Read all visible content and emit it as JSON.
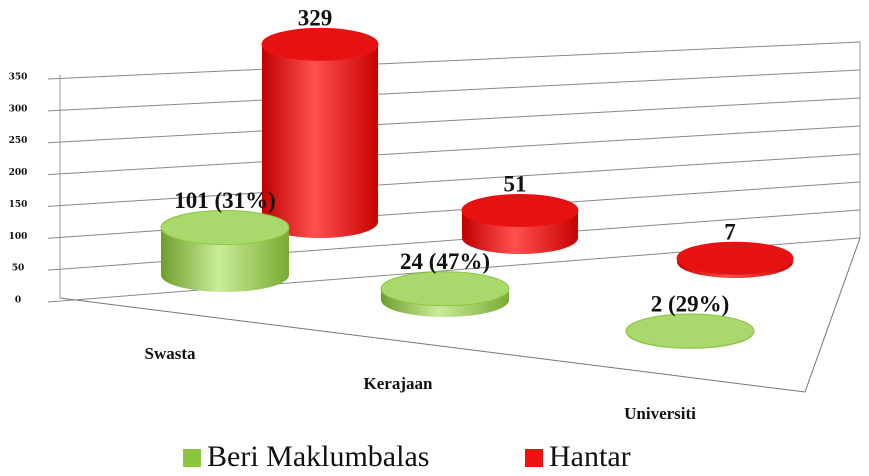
{
  "chart_data": {
    "type": "bar3d",
    "categories": [
      "Swasta",
      "Kerajaan",
      "Universiti"
    ],
    "series": [
      {
        "name": "Beri Maklumbalas",
        "color": "#8cc63f",
        "values": [
          101,
          24,
          2
        ],
        "value_labels": [
          "101 (31%)",
          "24 (47%)",
          "2 (29%)"
        ]
      },
      {
        "name": "Hantar",
        "color": "#ee1111",
        "values": [
          329,
          51,
          7
        ]
      }
    ],
    "ylim": [
      0,
      350
    ],
    "yticks": [
      0,
      50,
      100,
      150,
      200,
      250,
      300,
      350
    ],
    "grid": true,
    "legend": "bottom"
  }
}
